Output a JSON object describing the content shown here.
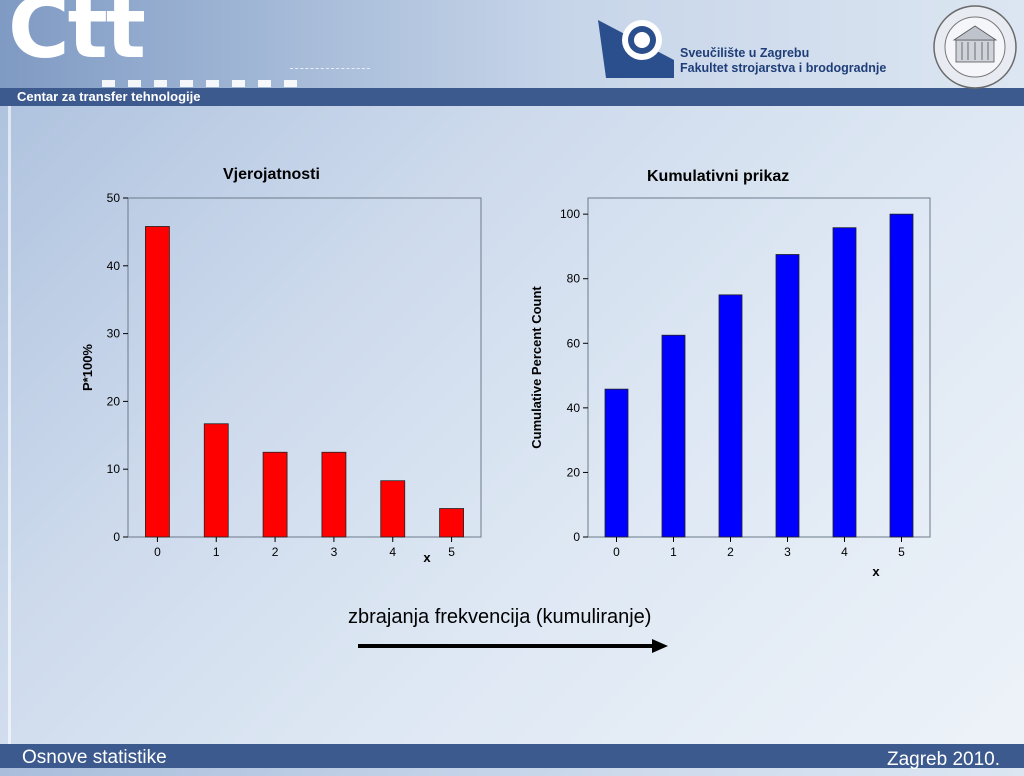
{
  "header": {
    "logo": "Ctt",
    "subtitle": "Centar za transfer tehnologije",
    "university_line1": "Sveučilište u Zagrebu",
    "university_line2": "Fakultet strojarstva i brodogradnje"
  },
  "footer": {
    "left": "Osnove statistike",
    "right": "Zagreb 2010."
  },
  "caption": "zbrajanja frekvencija (kumuliranje)",
  "colors": {
    "bar1": "#ff0000",
    "bar2": "#0000ff",
    "theme": "#3d5a8e"
  },
  "chart_data": [
    {
      "type": "bar",
      "title": "Vjerojatnosti",
      "xlabel": "x",
      "ylabel": "P*100%",
      "categories": [
        "0",
        "1",
        "2",
        "3",
        "4",
        "5"
      ],
      "values": [
        45.8,
        16.7,
        12.5,
        12.5,
        8.3,
        4.2
      ],
      "ylim": [
        0,
        50
      ],
      "yticks": [
        "0",
        "10",
        "20",
        "30",
        "40",
        "50"
      ],
      "color": "#ff0000"
    },
    {
      "type": "bar",
      "title": "Kumulativni prikaz",
      "xlabel": "x",
      "ylabel": "Cumulative Percent Count",
      "categories": [
        "0",
        "1",
        "2",
        "3",
        "4",
        "5"
      ],
      "values": [
        45.8,
        62.5,
        75.0,
        87.5,
        95.8,
        100
      ],
      "ylim": [
        0,
        105
      ],
      "yticks": [
        "0",
        "20",
        "40",
        "60",
        "80",
        "100"
      ],
      "color": "#0000ff"
    }
  ]
}
